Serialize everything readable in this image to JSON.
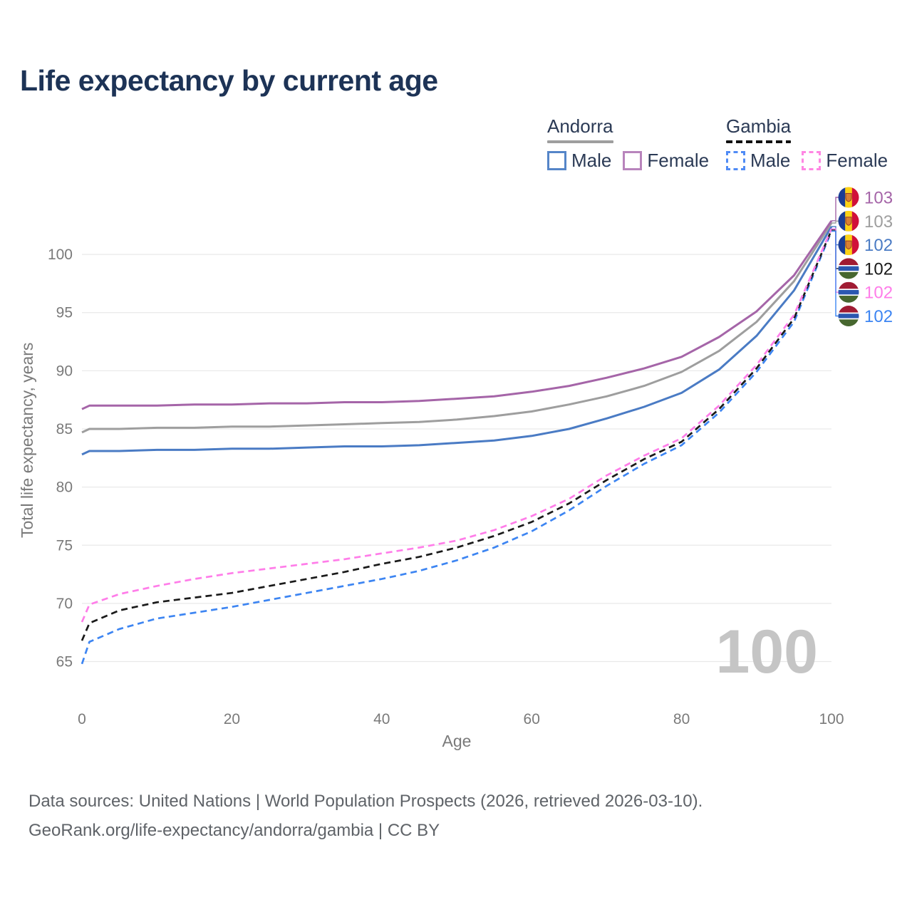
{
  "title": "Life expectancy by current age",
  "watermark": "100",
  "legend": {
    "groups": [
      {
        "country": "Andorra",
        "line_style": "solid",
        "line_color": "#9e9e9e",
        "entries": [
          {
            "label": "Male",
            "style": "solid",
            "color": "#5585c8"
          },
          {
            "label": "Female",
            "style": "solid",
            "color": "#b884bc"
          }
        ]
      },
      {
        "country": "Gambia",
        "line_style": "dashed",
        "line_color": "#111111",
        "entries": [
          {
            "label": "Male",
            "style": "dashed",
            "color": "#4f8bf5"
          },
          {
            "label": "Female",
            "style": "dashed",
            "color": "#ff86e3"
          }
        ]
      }
    ]
  },
  "footer": {
    "line1": "Data sources: United Nations | World Population Prospects (2026, retrieved 2026-03-10).",
    "line2": "GeoRank.org/life-expectancy/andorra/gambia | CC BY"
  },
  "chart_data": {
    "type": "line",
    "title": "Life expectancy by current age",
    "xlabel": "Age",
    "ylabel": "Total life expectancy, years",
    "xlim": [
      0,
      100
    ],
    "ylim": [
      63.5,
      104
    ],
    "xticks": [
      0,
      20,
      40,
      60,
      80,
      100
    ],
    "yticks": [
      65,
      70,
      75,
      80,
      85,
      90,
      95,
      100
    ],
    "grid": "horizontal",
    "grid_color": "#e9e9e9",
    "tick_color": "#7a7a7a",
    "x": [
      0,
      1,
      5,
      10,
      15,
      20,
      25,
      30,
      35,
      40,
      45,
      50,
      55,
      60,
      65,
      70,
      75,
      80,
      85,
      90,
      95,
      100
    ],
    "series": [
      {
        "name": "Andorra Female",
        "country": "Andorra",
        "sex": "Female",
        "style": "solid",
        "color": "#a565a8",
        "values": [
          86.7,
          87.0,
          87.0,
          87.0,
          87.1,
          87.1,
          87.2,
          87.2,
          87.3,
          87.3,
          87.4,
          87.6,
          87.8,
          88.2,
          88.7,
          89.4,
          90.2,
          91.2,
          92.9,
          95.1,
          98.2,
          102.9
        ]
      },
      {
        "name": "Andorra Both sexes",
        "country": "Andorra",
        "sex": "Both",
        "style": "solid",
        "color": "#9e9e9e",
        "values": [
          84.7,
          85.0,
          85.0,
          85.1,
          85.1,
          85.2,
          85.2,
          85.3,
          85.4,
          85.5,
          85.6,
          85.8,
          86.1,
          86.5,
          87.1,
          87.8,
          88.7,
          89.9,
          91.7,
          94.2,
          97.7,
          102.7
        ]
      },
      {
        "name": "Andorra Male",
        "country": "Andorra",
        "sex": "Male",
        "style": "solid",
        "color": "#4a7bc4",
        "values": [
          82.8,
          83.1,
          83.1,
          83.2,
          83.2,
          83.3,
          83.3,
          83.4,
          83.5,
          83.5,
          83.6,
          83.8,
          84.0,
          84.4,
          85.0,
          85.9,
          86.9,
          88.1,
          90.1,
          93.0,
          96.9,
          102.4
        ]
      },
      {
        "name": "Gambia Both sexes",
        "country": "Gambia",
        "sex": "Both",
        "style": "dashed",
        "color": "#1a1a1a",
        "values": [
          66.8,
          68.3,
          69.4,
          70.1,
          70.5,
          70.9,
          71.5,
          72.1,
          72.7,
          73.4,
          74.0,
          74.8,
          75.8,
          77.0,
          78.6,
          80.6,
          82.4,
          83.9,
          86.7,
          90.2,
          94.5,
          102.1
        ]
      },
      {
        "name": "Gambia Female",
        "country": "Gambia",
        "sex": "Female",
        "style": "dashed",
        "color": "#ff7de9",
        "values": [
          68.4,
          69.9,
          70.8,
          71.5,
          72.1,
          72.6,
          73.0,
          73.4,
          73.8,
          74.3,
          74.8,
          75.4,
          76.3,
          77.5,
          79.0,
          81.0,
          82.7,
          84.2,
          87.0,
          90.5,
          94.8,
          102.2
        ]
      },
      {
        "name": "Gambia Male",
        "country": "Gambia",
        "sex": "Male",
        "style": "dashed",
        "color": "#3d85f2",
        "values": [
          64.8,
          66.7,
          67.8,
          68.7,
          69.2,
          69.7,
          70.3,
          70.9,
          71.5,
          72.1,
          72.8,
          73.7,
          74.8,
          76.2,
          78.0,
          80.1,
          82.0,
          83.6,
          86.4,
          89.9,
          94.2,
          102.0
        ]
      }
    ],
    "end_labels": [
      {
        "value": "103",
        "series": "Andorra Female",
        "flag": "andorra",
        "color": "#a565a8"
      },
      {
        "value": "103",
        "series": "Andorra Both sexes",
        "flag": "andorra",
        "color": "#9e9e9e"
      },
      {
        "value": "102",
        "series": "Andorra Male",
        "flag": "andorra",
        "color": "#4a7bc4"
      },
      {
        "value": "102",
        "series": "Gambia Both sexes",
        "flag": "gambia",
        "color": "#1a1a1a"
      },
      {
        "value": "102",
        "series": "Gambia Female",
        "flag": "gambia",
        "color": "#ff7de9"
      },
      {
        "value": "102",
        "series": "Gambia Male",
        "flag": "gambia",
        "color": "#3d85f2"
      }
    ],
    "legend_position": "top-right"
  }
}
